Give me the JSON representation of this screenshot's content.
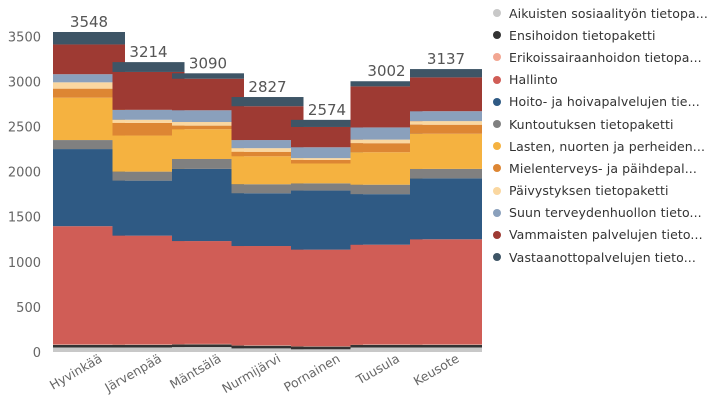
{
  "chart_data": {
    "type": "bar",
    "stacked": true,
    "categories": [
      "Hyvinkää",
      "Järvenpää",
      "Mäntsälä",
      "Nurmijärvi",
      "Pornainen",
      "Tuusula",
      "Keusote"
    ],
    "totals": [
      "3548",
      "3214",
      "3090",
      "2827",
      "2574",
      "3002",
      "3137"
    ],
    "ylim": [
      0,
      3700
    ],
    "yticks": [
      "0",
      "500",
      "1000",
      "1500",
      "2000",
      "2500",
      "3000",
      "3500"
    ],
    "ytick_values": [
      0,
      500,
      1000,
      1500,
      2000,
      2500,
      3000,
      3500
    ],
    "legend_position": "right",
    "series": [
      {
        "name": "Aikuisten sosiaalityön tietopaketti",
        "label": "Aikuisten sosiaalityön tietopa...",
        "color": "#c8c8c8",
        "values": [
          50,
          50,
          55,
          40,
          30,
          50,
          50
        ]
      },
      {
        "name": "Ensihoidon tietopaketti",
        "label": "Ensihoidon tietopaketti",
        "color": "#333333",
        "values": [
          30,
          30,
          30,
          30,
          30,
          30,
          30
        ]
      },
      {
        "name": "Erikoissairaanhoidon tietopaketti",
        "label": "Erikoissairaanhoidon tietopa...",
        "color": "#f2a692",
        "values": [
          5,
          5,
          5,
          5,
          5,
          5,
          5
        ]
      },
      {
        "name": "Hallinto",
        "label": "Hallinto",
        "color": "#d05d56",
        "values": [
          1310,
          1205,
          1140,
          1100,
          1070,
          1105,
          1165
        ]
      },
      {
        "name": "Hoito- ja hoivapalvelujen tietopaketti",
        "label": "Hoito- ja hoivapalvelujen tie...",
        "color": "#2f5a84",
        "values": [
          855,
          610,
          800,
          585,
          655,
          560,
          675
        ]
      },
      {
        "name": "Kuntoutuksen tietopaketti",
        "label": "Kuntoutuksen tietopaketti",
        "color": "#808080",
        "values": [
          100,
          100,
          110,
          100,
          80,
          105,
          105
        ]
      },
      {
        "name": "Lasten, nuorten ja perheiden tietopaketti",
        "label": "Lasten, nuorten ja perheiden...",
        "color": "#f5b240",
        "values": [
          470,
          400,
          330,
          310,
          220,
          360,
          390
        ]
      },
      {
        "name": "Mielenterveys- ja päihdepalvelujen tietopaketti",
        "label": "Mielenterveys- ja päihdepal...",
        "color": "#dd8633",
        "values": [
          100,
          140,
          40,
          50,
          40,
          100,
          100
        ]
      },
      {
        "name": "Päivystyksen tietopaketti",
        "label": "Päivystyksen tietopaketti",
        "color": "#fad7a0",
        "values": [
          70,
          35,
          40,
          40,
          20,
          40,
          40
        ]
      },
      {
        "name": "Suun terveydenhuollon tietopaketti",
        "label": "Suun terveydenhuollon tieto...",
        "color": "#8aa0bc",
        "values": [
          90,
          110,
          130,
          90,
          120,
          135,
          110
        ]
      },
      {
        "name": "Vammaisten palvelujen tietopaketti",
        "label": "Vammaisten palvelujen tieto...",
        "color": "#9e3a33",
        "values": [
          330,
          420,
          350,
          375,
          225,
          455,
          375
        ]
      },
      {
        "name": "Vastaanottopalvelujen tietopaketti",
        "label": "Vastaanottopalvelujen tieto...",
        "color": "#3e5566",
        "values": [
          138,
          109,
          60,
          102,
          79,
          57,
          92
        ]
      }
    ]
  }
}
